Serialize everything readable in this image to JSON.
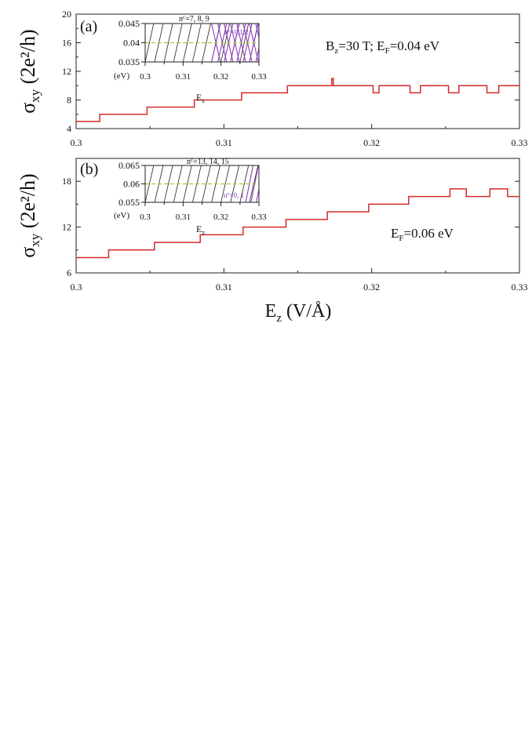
{
  "chart_data": [
    {
      "type": "line",
      "panel_label": "(a)",
      "xlabel": "",
      "ylabel_main": "σ",
      "ylabel_sub": "xy",
      "ylabel_rest": " (2e²/h)",
      "xlim": [
        0.3,
        0.33
      ],
      "ylim": [
        4,
        20
      ],
      "xticks": [
        "0.3",
        "0.31",
        "0.32",
        "0.33"
      ],
      "yticks": [
        "4",
        "8",
        "12",
        "16",
        "20"
      ],
      "annotation": "B_z=30 T; E_F=0.04 eV",
      "annotation_parts": {
        "a": "B",
        "b": "z",
        "c": "=30 T; E",
        "d": "F",
        "e": "=0.04 eV"
      },
      "line_color": "#d42a2a",
      "series": [
        {
          "x": [
            0.3,
            0.3016,
            0.3016,
            0.3048,
            0.3048,
            0.308,
            0.308,
            0.3112,
            0.3112,
            0.3143,
            0.3143,
            0.3173,
            0.3173,
            0.3174,
            0.3174,
            0.3201,
            0.3201,
            0.3205,
            0.3205,
            0.3226,
            0.3226,
            0.3233,
            0.3233,
            0.3252,
            0.3252,
            0.3259,
            0.3259,
            0.3278,
            0.3278,
            0.3286,
            0.3286,
            0.33
          ],
          "y": [
            5,
            5,
            6,
            6,
            7,
            7,
            8,
            8,
            9,
            9,
            10,
            10,
            11,
            11,
            10,
            10,
            9,
            9,
            10,
            10,
            9,
            9,
            10,
            10,
            9,
            9,
            10,
            10,
            9,
            9,
            10,
            10
          ]
        }
      ],
      "inset": {
        "ylabel": "(eV)",
        "xlabel_main": "E",
        "xlabel_sub": "z",
        "ylim": [
          0.035,
          0.045
        ],
        "xlim": [
          0.3,
          0.33
        ],
        "yticks": [
          "0.045",
          "0.04",
          "0.035"
        ],
        "xticks": [
          "0.3",
          "0.31",
          "0.32",
          "0.33"
        ],
        "label_black": "n^c=7, 8, 9",
        "label_black_parts": {
          "a": "n",
          "b": "c",
          "c": "=7, 8, 9"
        },
        "label_purple": "n^v=0,1,2",
        "label_purple_parts": {
          "a": "n",
          "b": "v",
          "c": "=0,1,2"
        },
        "fermi_level": 0.04,
        "fermi_color": "#99cc33",
        "purple_color": "#8a3fbf"
      }
    },
    {
      "type": "line",
      "panel_label": "(b)",
      "xlabel_main": "E",
      "xlabel_sub": "z",
      "xlabel_rest": " (V/Å)",
      "ylabel_main": "σ",
      "ylabel_sub": "xy",
      "ylabel_rest": " (2e²/h)",
      "xlim": [
        0.3,
        0.33
      ],
      "ylim": [
        6,
        21
      ],
      "xticks": [
        "0.3",
        "0.31",
        "0.32",
        "0.33"
      ],
      "yticks": [
        "6",
        "12",
        "18"
      ],
      "annotation": "E_F=0.06 eV",
      "annotation_parts": {
        "a": "E",
        "b": "F",
        "c": "=0.06 eV"
      },
      "line_color": "#d42a2a",
      "series": [
        {
          "x": [
            0.3,
            0.3022,
            0.3022,
            0.3053,
            0.3053,
            0.3084,
            0.3084,
            0.3113,
            0.3113,
            0.3142,
            0.3142,
            0.317,
            0.317,
            0.3198,
            0.3198,
            0.3225,
            0.3225,
            0.3253,
            0.3253,
            0.3264,
            0.3264,
            0.328,
            0.328,
            0.3292,
            0.3292,
            0.33
          ],
          "y": [
            8,
            8,
            9,
            9,
            10,
            10,
            11,
            11,
            12,
            12,
            13,
            13,
            14,
            14,
            15,
            15,
            16,
            16,
            17,
            17,
            16,
            16,
            17,
            17,
            16,
            16
          ]
        }
      ],
      "inset": {
        "ylabel": "(eV)",
        "xlabel_main": "E",
        "xlabel_sub": "z",
        "ylim": [
          0.055,
          0.065
        ],
        "xlim": [
          0.3,
          0.33
        ],
        "yticks": [
          "0.065",
          "0.06",
          "0.055"
        ],
        "xticks": [
          "0.3",
          "0.31",
          "0.32",
          "0.33"
        ],
        "label_black": "n^c=13, 14, 15",
        "label_black_parts": {
          "a": "n",
          "b": "c",
          "c": "=13, 14, 15"
        },
        "label_purple": "n^v=0, 1",
        "label_purple_parts": {
          "a": "n",
          "b": "v",
          "c": "=0, 1"
        },
        "fermi_level": 0.06,
        "fermi_color": "#99cc33",
        "purple_color": "#8a3fbf"
      }
    }
  ]
}
